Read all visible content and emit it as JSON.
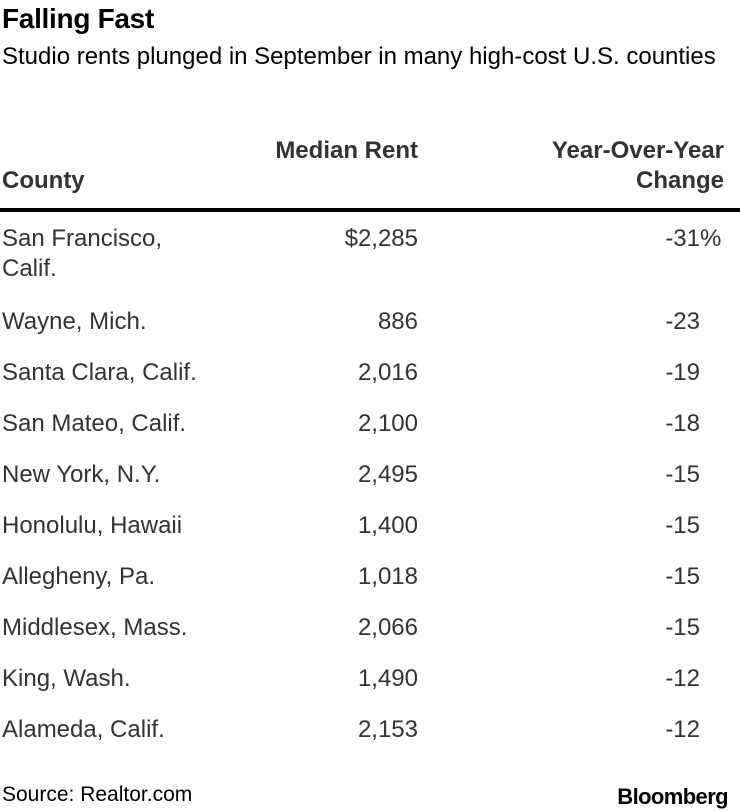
{
  "title": "Falling Fast",
  "subtitle": "Studio rents plunged in September in many high-cost U.S. counties",
  "columns": {
    "county": "County",
    "median_rent": "Median Rent",
    "yoy_change": "Year-Over-Year Change"
  },
  "chart_data": {
    "type": "table",
    "title": "Falling Fast",
    "subtitle": "Studio rents plunged in September in many high-cost U.S. counties",
    "columns": [
      "County",
      "Median Rent",
      "Year-Over-Year Change"
    ],
    "rows": [
      {
        "county": "San Francisco, Calif.",
        "median_rent": "$2,285",
        "yoy_change": "-31",
        "pct": "%"
      },
      {
        "county": "Wayne, Mich.",
        "median_rent": "886",
        "yoy_change": "-23",
        "pct": ""
      },
      {
        "county": "Santa Clara, Calif.",
        "median_rent": "2,016",
        "yoy_change": "-19",
        "pct": ""
      },
      {
        "county": "San Mateo, Calif.",
        "median_rent": "2,100",
        "yoy_change": "-18",
        "pct": ""
      },
      {
        "county": "New York, N.Y.",
        "median_rent": "2,495",
        "yoy_change": "-15",
        "pct": ""
      },
      {
        "county": "Honolulu, Hawaii",
        "median_rent": "1,400",
        "yoy_change": "-15",
        "pct": ""
      },
      {
        "county": "Allegheny, Pa.",
        "median_rent": "1,018",
        "yoy_change": "-15",
        "pct": ""
      },
      {
        "county": "Middlesex, Mass.",
        "median_rent": "2,066",
        "yoy_change": "-15",
        "pct": ""
      },
      {
        "county": "King, Wash.",
        "median_rent": "1,490",
        "yoy_change": "-12",
        "pct": ""
      },
      {
        "county": "Alameda, Calif.",
        "median_rent": "2,153",
        "yoy_change": "-12",
        "pct": ""
      }
    ]
  },
  "footer": {
    "source": "Source: Realtor.com",
    "brand": "Bloomberg"
  }
}
